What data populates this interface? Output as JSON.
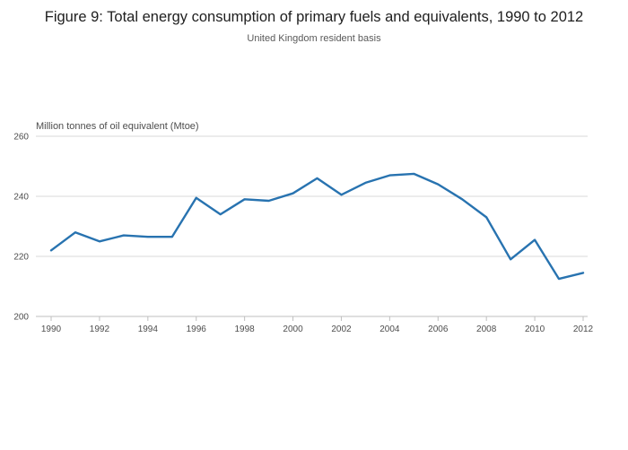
{
  "header": {
    "title": "Figure 9: Total energy consumption of primary fuels and equivalents, 1990 to 2012",
    "subtitle": "United Kingdom resident basis"
  },
  "chart_data": {
    "type": "line",
    "title": "Figure 9: Total energy consumption of primary fuels and equivalents, 1990 to 2012",
    "subtitle": "United Kingdom resident basis",
    "ylabel": "Million tonnes of oil equivalent (Mtoe)",
    "xlabel": "",
    "x": [
      1990,
      1991,
      1992,
      1993,
      1994,
      1995,
      1996,
      1997,
      1998,
      1999,
      2000,
      2001,
      2002,
      2003,
      2004,
      2005,
      2006,
      2007,
      2008,
      2009,
      2010,
      2011,
      2012
    ],
    "series": [
      {
        "name": "Total energy consumption",
        "values": [
          222,
          228,
          225,
          227,
          226.5,
          226.5,
          239.5,
          234,
          239,
          238.5,
          241,
          246,
          240.5,
          244.5,
          247,
          247.5,
          244,
          239,
          233,
          219,
          225.5,
          212.5,
          214.5
        ]
      }
    ],
    "ylim": [
      200,
      260
    ],
    "yticks": [
      200,
      220,
      240,
      260
    ],
    "xticks": [
      1990,
      1992,
      1994,
      1996,
      1998,
      2000,
      2002,
      2004,
      2006,
      2008,
      2010,
      2012
    ],
    "grid": true,
    "legend": "none",
    "colors": {
      "line": "#2873b0",
      "gridline": "#d9d9d9",
      "axis": "#bfbfbf",
      "tick_text": "#4d4d4d"
    }
  }
}
